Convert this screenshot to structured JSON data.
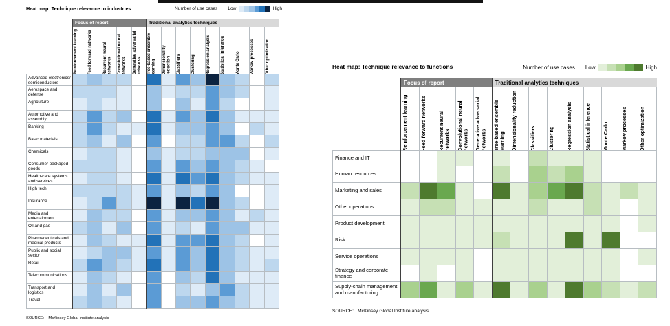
{
  "chart_data": [
    {
      "type": "heatmap",
      "title": "Heat map: Technique relevance to industries",
      "legend_label": "Number of use cases",
      "legend_low": "Low",
      "legend_high": "High",
      "column_groups": [
        {
          "label": "Focus of report",
          "span": 5
        },
        {
          "label": "Traditional analytics techniques",
          "span": 9
        }
      ],
      "columns": [
        "Reinforcement learning",
        "Feed forward networks",
        "Recurrent neural networks",
        "Convolutional neural networks",
        "Generative adversarial networks",
        "Tree-based ensemble learning",
        "Dimensionality reduction",
        "Classifiers",
        "Clustering",
        "Regression analysis",
        "Statistical inference",
        "Monte Carlo",
        "Markov processes",
        "Other optimization"
      ],
      "value_range": [
        0,
        6
      ],
      "palette": [
        "#ffffff",
        "#deebf7",
        "#bdd7ee",
        "#9dc3e6",
        "#5b9bd5",
        "#2272b8",
        "#0c2340"
      ],
      "legend_levels": [
        1,
        2,
        3,
        4,
        5,
        6
      ],
      "rows": [
        {
          "label": "Advanced electronics/ semiconductors",
          "values": [
            2,
            3,
            2,
            2,
            0,
            5,
            1,
            4,
            3,
            6,
            3,
            2,
            0,
            2
          ]
        },
        {
          "label": "Aerospace and defense",
          "values": [
            2,
            2,
            2,
            1,
            0,
            3,
            1,
            2,
            2,
            4,
            3,
            2,
            0,
            1
          ]
        },
        {
          "label": "Agriculture",
          "values": [
            1,
            2,
            1,
            1,
            0,
            3,
            0,
            3,
            1,
            4,
            2,
            0,
            0,
            1
          ]
        },
        {
          "label": "Automotive and assembly",
          "values": [
            2,
            4,
            2,
            3,
            0,
            5,
            1,
            4,
            3,
            5,
            3,
            1,
            1,
            1
          ]
        },
        {
          "label": "Banking",
          "values": [
            2,
            4,
            2,
            1,
            1,
            5,
            1,
            3,
            3,
            4,
            3,
            0,
            2,
            1
          ]
        },
        {
          "label": "Basic materials",
          "values": [
            2,
            3,
            1,
            3,
            0,
            4,
            0,
            2,
            2,
            4,
            4,
            2,
            0,
            2
          ]
        },
        {
          "label": "Chemicals",
          "values": [
            1,
            2,
            2,
            1,
            0,
            3,
            1,
            2,
            2,
            3,
            3,
            3,
            0,
            1
          ]
        },
        {
          "label": "Consumer packaged goods",
          "values": [
            2,
            2,
            2,
            1,
            0,
            4,
            1,
            4,
            3,
            4,
            3,
            2,
            1,
            0
          ]
        },
        {
          "label": "Health-care systems and services",
          "values": [
            1,
            2,
            2,
            1,
            0,
            5,
            1,
            5,
            4,
            5,
            3,
            2,
            1,
            1
          ]
        },
        {
          "label": "High tech",
          "values": [
            2,
            2,
            2,
            2,
            1,
            4,
            1,
            3,
            2,
            4,
            3,
            0,
            0,
            1
          ]
        },
        {
          "label": "Insurance",
          "values": [
            1,
            2,
            4,
            2,
            1,
            6,
            1,
            6,
            5,
            6,
            3,
            2,
            0,
            1
          ]
        },
        {
          "label": "Media and entertainment",
          "values": [
            1,
            3,
            2,
            2,
            0,
            4,
            1,
            3,
            3,
            4,
            3,
            1,
            2,
            1
          ]
        },
        {
          "label": "Oil and gas",
          "values": [
            2,
            3,
            1,
            3,
            0,
            4,
            1,
            2,
            1,
            4,
            3,
            3,
            1,
            1
          ]
        },
        {
          "label": "Pharmaceuticals and medical products",
          "values": [
            1,
            3,
            2,
            1,
            1,
            5,
            1,
            4,
            4,
            5,
            3,
            2,
            0,
            1
          ]
        },
        {
          "label": "Public and social sector",
          "values": [
            1,
            2,
            3,
            3,
            1,
            4,
            1,
            4,
            3,
            5,
            3,
            2,
            1,
            1
          ]
        },
        {
          "label": "Retail",
          "values": [
            2,
            4,
            3,
            2,
            1,
            5,
            1,
            4,
            3,
            5,
            3,
            2,
            1,
            2
          ]
        },
        {
          "label": "Telecommunications",
          "values": [
            1,
            3,
            2,
            1,
            0,
            4,
            0,
            3,
            2,
            5,
            3,
            1,
            1,
            1
          ]
        },
        {
          "label": "Transport and logistics",
          "values": [
            1,
            3,
            1,
            3,
            0,
            4,
            0,
            2,
            1,
            3,
            4,
            2,
            1,
            1
          ]
        },
        {
          "label": "Travel",
          "values": [
            2,
            3,
            2,
            1,
            0,
            4,
            0,
            3,
            3,
            4,
            3,
            2,
            1,
            1
          ]
        }
      ],
      "source_prefix": "SOURCE:",
      "source": "McKinsey Global Institute analysis"
    },
    {
      "type": "heatmap",
      "title": "Heat map: Technique relevance to functions",
      "legend_label": "Number of use cases",
      "legend_low": "Low",
      "legend_high": "High",
      "column_groups": [
        {
          "label": "Focus of report",
          "span": 5
        },
        {
          "label": "Traditional analytics techniques",
          "span": 9
        }
      ],
      "columns": [
        "Reinforcement learning",
        "Feed forward networks",
        "Recurrent neural networks",
        "Convolutional neural networks",
        "Generative adversarial networks",
        "Tree-based ensemble learning",
        "Dimensionality reduction",
        "Classifiers",
        "Clustering",
        "Regression analysis",
        "Statistical inference",
        "Monte Carlo",
        "Markov processes",
        "Other optimization"
      ],
      "value_range": [
        0,
        5
      ],
      "palette": [
        "#ffffff",
        "#e2efd9",
        "#c6e0b4",
        "#a9d18e",
        "#6aa84f",
        "#4e7a2e"
      ],
      "legend_levels": [
        1,
        2,
        3,
        4,
        5
      ],
      "rows": [
        {
          "label": "Finance and IT",
          "values": [
            0,
            0,
            1,
            1,
            0,
            1,
            0,
            2,
            1,
            1,
            1,
            0,
            0,
            0
          ]
        },
        {
          "label": "Human resources",
          "values": [
            0,
            0,
            1,
            0,
            0,
            2,
            0,
            3,
            2,
            3,
            1,
            0,
            0,
            0
          ]
        },
        {
          "label": "Marketing and sales",
          "values": [
            2,
            5,
            4,
            1,
            0,
            5,
            1,
            3,
            4,
            5,
            2,
            1,
            2,
            1
          ]
        },
        {
          "label": "Other operations",
          "values": [
            1,
            2,
            2,
            1,
            1,
            1,
            1,
            2,
            1,
            1,
            2,
            1,
            0,
            1
          ]
        },
        {
          "label": "Product development",
          "values": [
            1,
            1,
            1,
            1,
            1,
            1,
            1,
            1,
            1,
            1,
            1,
            1,
            0,
            1
          ]
        },
        {
          "label": "Risk",
          "values": [
            1,
            1,
            1,
            1,
            1,
            2,
            1,
            1,
            1,
            5,
            1,
            5,
            0,
            0
          ]
        },
        {
          "label": "Service operations",
          "values": [
            1,
            1,
            1,
            1,
            0,
            1,
            1,
            1,
            1,
            1,
            1,
            1,
            0,
            1
          ]
        },
        {
          "label": "Strategy and corporate finance",
          "values": [
            0,
            1,
            0,
            1,
            0,
            1,
            1,
            1,
            1,
            1,
            1,
            1,
            0,
            0
          ]
        },
        {
          "label": "Supply-chain management and manufacturing",
          "values": [
            3,
            4,
            1,
            3,
            1,
            5,
            1,
            3,
            1,
            5,
            3,
            2,
            1,
            2
          ]
        }
      ],
      "source_prefix": "SOURCE:",
      "source": "McKinsey Global Institute analysis"
    }
  ]
}
